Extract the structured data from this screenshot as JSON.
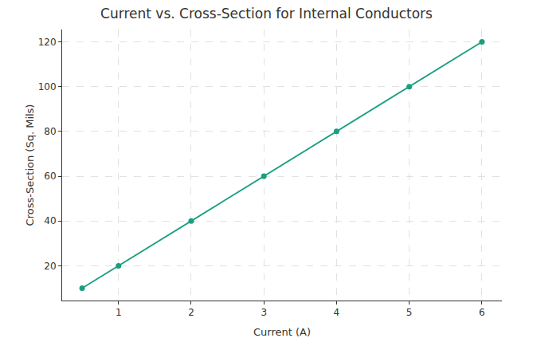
{
  "chart_data": {
    "type": "line",
    "title": "Current vs. Cross-Section for Internal Conductors",
    "x_label": "Current (A)",
    "y_label": "Cross-Section (Sq. Mils)",
    "x": [
      0.5,
      1,
      2,
      3,
      4,
      5,
      6
    ],
    "values": [
      10,
      20,
      40,
      60,
      80,
      100,
      120
    ],
    "color": "#1a9e80",
    "marker": "circle",
    "line_style": "solid",
    "xlim": [
      0.225,
      6.275
    ],
    "xticks": [
      1,
      2,
      3,
      4,
      5,
      6
    ],
    "ylim": [
      4.5,
      125.5
    ],
    "yticks": [
      20,
      40,
      60,
      80,
      100,
      120
    ],
    "grid": true
  }
}
